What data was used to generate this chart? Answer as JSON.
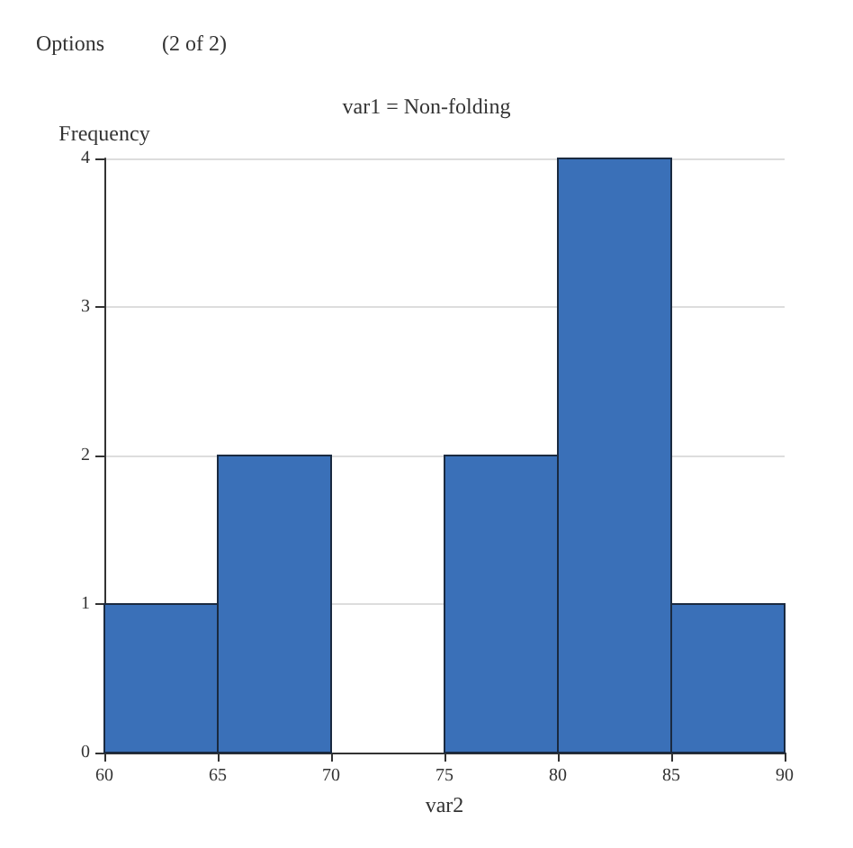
{
  "chart_data": {
    "type": "histogram",
    "title": "var1 = Non-folding",
    "xlabel": "var2",
    "ylabel": "Frequency",
    "annotations": [
      "Options",
      "(2 of 2)"
    ],
    "bins": [
      60,
      65,
      70,
      75,
      80,
      85,
      90
    ],
    "values": [
      1,
      2,
      0,
      2,
      4,
      1
    ],
    "color": "#3a70b8",
    "xlim": [
      60,
      90
    ],
    "xticks": [
      60,
      65,
      70,
      75,
      80,
      85,
      90
    ],
    "ylim": [
      0,
      4
    ],
    "yticks": [
      0,
      1,
      2,
      3,
      4
    ],
    "grid": "y"
  }
}
